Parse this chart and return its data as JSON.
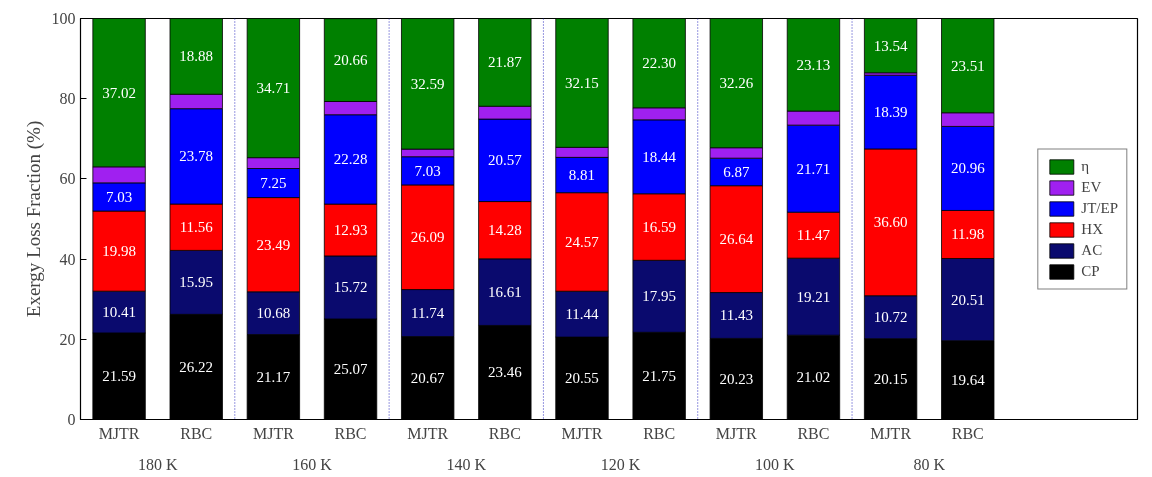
{
  "chart_data": {
    "type": "bar",
    "stacked": true,
    "ylabel": "Exergy Loss Fraction (%)",
    "categories": [
      "MJTR",
      "RBC",
      "MJTR",
      "RBC",
      "MJTR",
      "RBC",
      "MJTR",
      "RBC",
      "MJTR",
      "RBC",
      "MJTR",
      "RBC"
    ],
    "annotations": [
      "180 K",
      "160 K",
      "140 K",
      "120 K",
      "100 K",
      "80 K"
    ],
    "series": [
      {
        "name": "CP",
        "color": "#000000",
        "values": [
          21.59,
          26.22,
          21.17,
          25.07,
          20.67,
          23.46,
          20.55,
          21.75,
          20.23,
          21.02,
          20.15,
          19.64
        ],
        "value_labels": [
          "21.59",
          "26.22",
          "21.17",
          "25.07",
          "20.67",
          "23.46",
          "20.55",
          "21.75",
          "20.23",
          "21.02",
          "20.15",
          "19.64"
        ]
      },
      {
        "name": "AC",
        "color": "#0a0a6e",
        "values": [
          10.41,
          15.95,
          10.68,
          15.72,
          11.74,
          16.61,
          11.44,
          17.95,
          11.43,
          19.21,
          10.72,
          20.51
        ],
        "value_labels": [
          "10.41",
          "15.95",
          "10.68",
          "15.72",
          "11.74",
          "16.61",
          "11.44",
          "17.95",
          "11.43",
          "19.21",
          "10.72",
          "20.51"
        ]
      },
      {
        "name": "HX",
        "color": "#ff0000",
        "values": [
          19.98,
          11.56,
          23.49,
          12.93,
          26.09,
          14.28,
          24.57,
          16.59,
          26.64,
          11.47,
          36.6,
          11.98
        ],
        "value_labels": [
          "19.98",
          "11.56",
          "23.49",
          "12.93",
          "26.09",
          "14.28",
          "24.57",
          "16.59",
          "26.64",
          "11.47",
          "36.60",
          "11.98"
        ]
      },
      {
        "name": "JT/EP",
        "color": "#0000ff",
        "values": [
          7.03,
          23.78,
          7.25,
          22.28,
          7.03,
          20.57,
          8.81,
          18.44,
          6.87,
          21.71,
          18.39,
          20.96
        ],
        "value_labels": [
          "7.03",
          "23.78",
          "7.25",
          "22.28",
          "7.03",
          "20.57",
          "8.81",
          "18.44",
          "6.87",
          "21.71",
          "18.39",
          "20.96"
        ]
      },
      {
        "name": "EV",
        "color": "#a020f0",
        "values": [
          4.0,
          3.6,
          2.7,
          3.3,
          1.9,
          3.2,
          2.5,
          3.0,
          2.6,
          3.5,
          0.6,
          3.4
        ],
        "value_labels": [
          null,
          null,
          null,
          null,
          null,
          null,
          null,
          null,
          null,
          null,
          null,
          null
        ]
      },
      {
        "name": "η",
        "color": "#008000",
        "values": [
          37.02,
          18.88,
          34.71,
          20.66,
          32.59,
          21.87,
          32.15,
          22.3,
          32.26,
          23.13,
          13.54,
          23.51
        ],
        "value_labels": [
          "37.02",
          "18.88",
          "34.71",
          "20.66",
          "32.59",
          "21.87",
          "32.15",
          "22.30",
          "32.26",
          "23.13",
          "13.54",
          "23.51"
        ]
      }
    ],
    "ylim": [
      0,
      100
    ],
    "yticks": [
      0,
      20,
      40,
      60,
      80,
      100
    ],
    "grid": false,
    "legend": "right"
  }
}
